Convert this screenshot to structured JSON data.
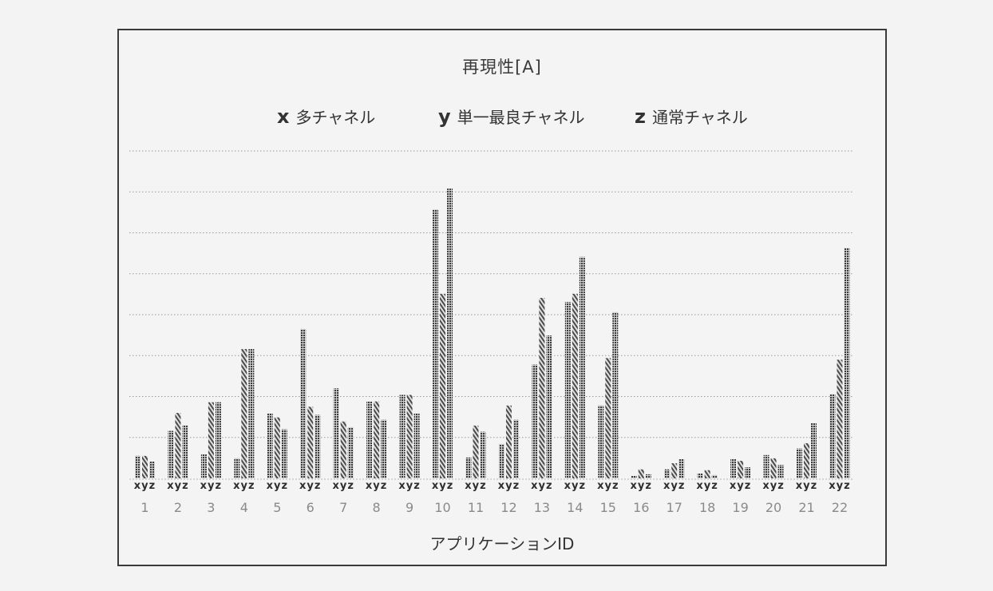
{
  "chart_data": {
    "type": "bar",
    "title": "再現性[A]",
    "xlabel": "アプリケーションID",
    "ylabel": "",
    "categories": [
      "1",
      "2",
      "3",
      "4",
      "5",
      "6",
      "7",
      "8",
      "9",
      "10",
      "11",
      "12",
      "13",
      "14",
      "15",
      "16",
      "17",
      "18",
      "19",
      "20",
      "21",
      "22"
    ],
    "series": [
      {
        "key": "x",
        "name": "多チャネル",
        "pattern": "checker",
        "values": [
          0.55,
          1.16,
          0.59,
          0.49,
          1.59,
          3.65,
          2.2,
          1.88,
          2.04,
          6.57,
          0.51,
          0.84,
          2.78,
          4.31,
          1.78,
          0.06,
          0.22,
          0.12,
          0.47,
          0.57,
          0.73,
          2.06
        ]
      },
      {
        "key": "y",
        "name": "単一最良チャネル",
        "pattern": "hatch",
        "values": [
          0.55,
          1.6,
          1.86,
          3.16,
          1.49,
          1.75,
          1.39,
          1.88,
          2.04,
          4.51,
          1.29,
          1.78,
          4.41,
          4.51,
          2.94,
          0.22,
          0.37,
          0.2,
          0.43,
          0.49,
          0.86,
          2.9
        ]
      },
      {
        "key": "z",
        "name": "通常チャネル",
        "pattern": "checker",
        "values": [
          0.41,
          1.3,
          1.86,
          3.16,
          1.2,
          1.55,
          1.25,
          1.43,
          1.59,
          7.08,
          1.14,
          1.43,
          3.49,
          5.41,
          4.06,
          0.1,
          0.47,
          0.08,
          0.27,
          0.33,
          1.35,
          5.63
        ]
      }
    ],
    "ylim": [
      0,
      8
    ],
    "y_gridlines": [
      1,
      2,
      3,
      4,
      5,
      6,
      7,
      8
    ],
    "y_tick_labels": [],
    "grid": true,
    "legend_position": "top",
    "bar_sublabels": [
      "x",
      "y",
      "z"
    ],
    "colors": {
      "checker_dark": "#3c3c3c",
      "hatch_dark": "#555555",
      "grid": "#9a9a9a",
      "frame": "#3a3a3a"
    }
  },
  "legend": [
    {
      "key": "x",
      "label": "多チャネル"
    },
    {
      "key": "y",
      "label": "単一最良チャネル"
    },
    {
      "key": "z",
      "label": "通常チャネル"
    }
  ]
}
